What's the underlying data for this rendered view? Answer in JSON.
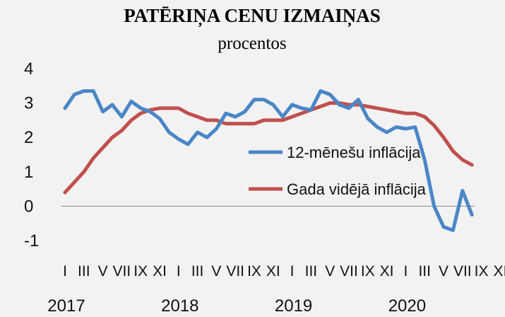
{
  "chart_data": {
    "type": "line",
    "title": "PATĒRIŅA CENU IZMAIŅAS",
    "subtitle": "procentos",
    "ylim": [
      -1,
      4
    ],
    "yticks": [
      -1,
      0,
      1,
      2,
      3,
      4
    ],
    "ytick_labels": [
      "-1",
      "0",
      "1",
      "2",
      "3",
      "4"
    ],
    "grid": false,
    "legend_position": "center-right",
    "month_labels": [
      "I",
      "III",
      "V",
      "VII",
      "IX",
      "XI"
    ],
    "years": [
      "2017",
      "2018",
      "2019",
      "2020"
    ],
    "series": [
      {
        "name": "12-mēnešu inflācija",
        "color": "#4a86c6",
        "values": [
          2.85,
          3.25,
          3.35,
          3.35,
          2.75,
          2.95,
          2.6,
          3.05,
          2.85,
          2.75,
          2.55,
          2.15,
          1.95,
          1.8,
          2.15,
          2.0,
          2.25,
          2.7,
          2.6,
          2.75,
          3.1,
          3.1,
          2.95,
          2.6,
          2.95,
          2.85,
          2.8,
          3.35,
          3.25,
          2.95,
          2.85,
          3.1,
          2.55,
          2.3,
          2.15,
          2.3,
          2.25,
          2.3,
          1.35,
          0.0,
          -0.6,
          -0.7,
          0.45,
          -0.25
        ]
      },
      {
        "name": "Gada vidējā inflācija",
        "color": "#c0504d",
        "values": [
          0.4,
          0.7,
          1.0,
          1.4,
          1.7,
          2.0,
          2.2,
          2.5,
          2.7,
          2.8,
          2.85,
          2.85,
          2.85,
          2.7,
          2.6,
          2.5,
          2.5,
          2.4,
          2.4,
          2.4,
          2.4,
          2.5,
          2.5,
          2.5,
          2.6,
          2.7,
          2.8,
          2.9,
          3.0,
          3.0,
          2.95,
          2.95,
          2.9,
          2.85,
          2.8,
          2.75,
          2.7,
          2.7,
          2.6,
          2.35,
          2.0,
          1.6,
          1.35,
          1.2
        ]
      }
    ]
  }
}
